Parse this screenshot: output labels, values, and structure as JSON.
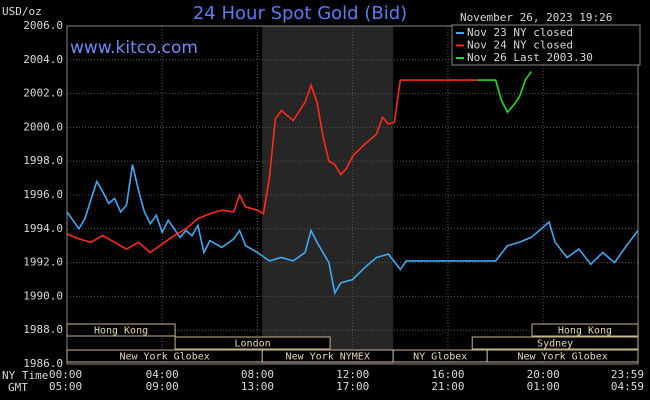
{
  "chart_data": {
    "type": "line",
    "title": "24 Hour Spot Gold (Bid)",
    "timestamp": "November 26, 2023 19:26",
    "watermark": "www.kitco.com",
    "y_unit": "USD/oz",
    "x_row_labels": [
      "NY Time",
      "GMT"
    ],
    "xlim": [
      0,
      23.983
    ],
    "xticks": [
      {
        "value": 0,
        "label": "00:00"
      },
      {
        "value": 4,
        "label": "04:00"
      },
      {
        "value": 8,
        "label": "08:00"
      },
      {
        "value": 12,
        "label": "12:00"
      },
      {
        "value": 16,
        "label": "16:00"
      },
      {
        "value": 20,
        "label": "20:00"
      },
      {
        "value": 23.983,
        "label": "23:59"
      }
    ],
    "gmt_labels": [
      "05:00",
      "09:00",
      "13:00",
      "17:00",
      "21:00",
      "01:00",
      "04:59"
    ],
    "ylim": [
      1986,
      2006
    ],
    "yticks": [
      {
        "value": 1986,
        "label": "1986.0"
      },
      {
        "value": 1988,
        "label": "1988.0"
      },
      {
        "value": 1990,
        "label": "1990.0"
      },
      {
        "value": 1992,
        "label": "1992.0"
      },
      {
        "value": 1994,
        "label": "1994.0"
      },
      {
        "value": 1996,
        "label": "1996.0"
      },
      {
        "value": 1998,
        "label": "1998.0"
      },
      {
        "value": 2000,
        "label": "2000.0"
      },
      {
        "value": 2002,
        "label": "2002.0"
      },
      {
        "value": 2004,
        "label": "2004.0"
      },
      {
        "value": 2006,
        "label": "2006.0"
      }
    ],
    "grid": true,
    "sessions": [
      {
        "name": "Hong Kong",
        "row": 0,
        "start": 0,
        "end": 4.54
      },
      {
        "name": "Hong Kong",
        "row": 0,
        "start": 19.53,
        "end": 23.983
      },
      {
        "name": "London",
        "row": 1,
        "start": 4.54,
        "end": 11.05
      },
      {
        "name": "Sydney",
        "row": 1,
        "start": 17.02,
        "end": 23.983
      },
      {
        "name": "New York Globex",
        "row": 2,
        "start": 0,
        "end": 8.2
      },
      {
        "name": "New York NYMEX",
        "row": 2,
        "start": 8.2,
        "end": 13.7,
        "shade": true
      },
      {
        "name": "NY Globex",
        "row": 2,
        "start": 13.7,
        "end": 17.65
      },
      {
        "name": "New York Globex",
        "row": 2,
        "start": 17.65,
        "end": 23.983
      }
    ],
    "series": [
      {
        "name": "Nov 23 NY closed",
        "color": "#3fa9f5",
        "x": [
          0,
          0.25,
          0.5,
          0.75,
          1,
          1.25,
          1.5,
          1.75,
          2,
          2.25,
          2.5,
          2.75,
          3,
          3.25,
          3.5,
          3.75,
          4,
          4.25,
          4.5,
          4.75,
          5,
          5.25,
          5.5,
          5.75,
          6,
          6.5,
          7,
          7.25,
          7.5,
          8,
          8.5,
          9,
          9.5,
          10,
          10.25,
          10.5,
          11,
          11.25,
          11.5,
          12,
          12.5,
          13,
          13.5,
          14,
          14.25,
          18,
          18.5,
          19,
          19.5,
          20,
          20.25,
          20.5,
          21,
          21.5,
          22,
          22.5,
          23,
          23.5,
          23.983
        ],
        "values": [
          1995.0,
          1994.5,
          1994.0,
          1994.6,
          1995.7,
          1996.8,
          1996.2,
          1995.5,
          1995.8,
          1995.0,
          1995.4,
          1997.8,
          1996.3,
          1995.0,
          1994.3,
          1994.8,
          1993.8,
          1994.5,
          1994.0,
          1993.5,
          1993.9,
          1993.6,
          1994.2,
          1992.6,
          1993.3,
          1992.9,
          1993.4,
          1993.9,
          1993.0,
          1992.6,
          1992.1,
          1992.3,
          1992.1,
          1992.6,
          1993.9,
          1993.2,
          1992.0,
          1990.2,
          1990.8,
          1991.0,
          1991.7,
          1992.3,
          1992.5,
          1991.6,
          1992.1,
          1992.1,
          1993.0,
          1993.2,
          1993.5,
          1994.1,
          1994.4,
          1993.2,
          1992.3,
          1992.8,
          1991.9,
          1992.6,
          1992.0,
          1993.0,
          1993.9
        ]
      },
      {
        "name": "Nov 24 NY closed",
        "color": "#ff2a1a",
        "x": [
          0,
          0.5,
          1,
          1.5,
          2,
          2.5,
          3,
          3.5,
          4,
          4.5,
          5,
          5.5,
          6,
          6.5,
          7,
          7.25,
          7.5,
          8,
          8.25,
          8.5,
          8.75,
          9,
          9.5,
          10,
          10.25,
          10.5,
          10.75,
          11,
          11.25,
          11.5,
          11.75,
          12,
          12.5,
          13,
          13.25,
          13.5,
          13.75,
          14,
          17.25
        ],
        "values": [
          1993.7,
          1993.4,
          1993.2,
          1993.6,
          1993.2,
          1992.8,
          1993.2,
          1992.6,
          1993.1,
          1993.6,
          1994.0,
          1994.6,
          1994.9,
          1995.1,
          1995.0,
          1996.0,
          1995.3,
          1995.1,
          1994.9,
          1997.0,
          2000.5,
          2001.0,
          2000.4,
          2001.5,
          2002.5,
          2001.5,
          1999.5,
          1998.0,
          1997.8,
          1997.2,
          1997.6,
          1998.3,
          1999.0,
          1999.6,
          2000.6,
          2000.2,
          2000.3,
          2002.8,
          2002.8
        ]
      },
      {
        "name": "Nov 26 Last 2003.30",
        "color": "#22dd22",
        "x": [
          17.25,
          18,
          18.25,
          18.5,
          18.75,
          19,
          19.25,
          19.5
        ],
        "values": [
          2002.8,
          2002.8,
          2001.6,
          2000.9,
          2001.3,
          2001.8,
          2002.8,
          2003.3
        ]
      }
    ]
  }
}
